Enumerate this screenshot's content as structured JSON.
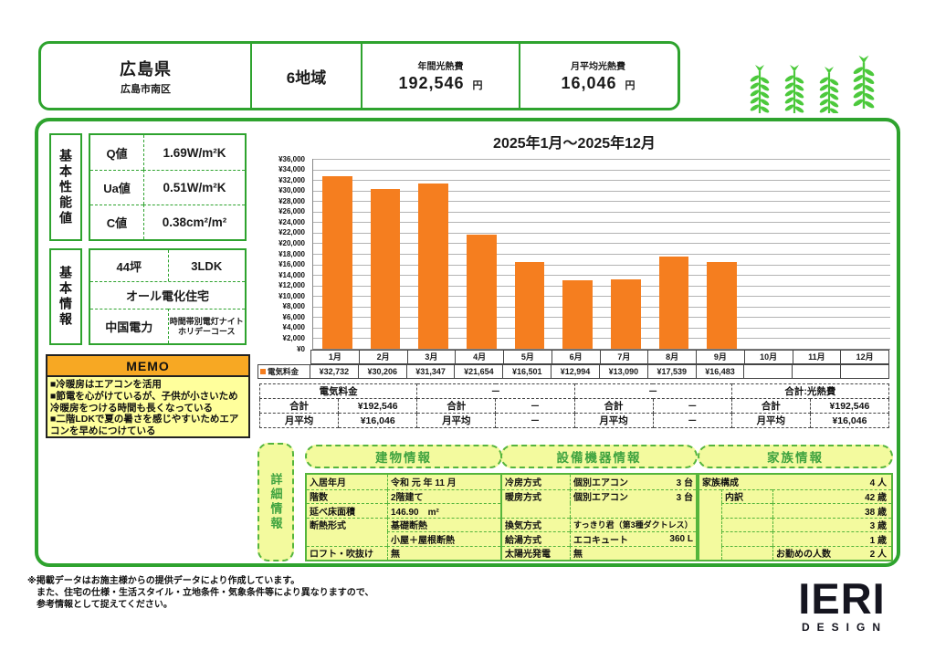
{
  "header": {
    "prefecture": "広島県",
    "city": "広島市南区",
    "region": "6地域",
    "annual_label": "年間光熱費",
    "annual_value": "192,546",
    "monthly_label": "月平均光熱費",
    "monthly_value": "16,046",
    "yen": "円"
  },
  "performance": {
    "section_label": "基本性能値",
    "rows": [
      {
        "label": "Q値",
        "value": "1.69W/m²K"
      },
      {
        "label": "Ua値",
        "value": "0.51W/m²K"
      },
      {
        "label": "C値",
        "value": "0.38cm²/m²"
      }
    ]
  },
  "basic_info": {
    "section_label": "基本情報",
    "area": "44坪",
    "layout": "3LDK",
    "house_type": "オール電化住宅",
    "power_company": "中国電力",
    "plan": "時間帯別電灯ナイトホリデーコース"
  },
  "memo": {
    "title": "MEMO",
    "lines": [
      "■冷暖房はエアコンを活用",
      "■節電を心がけているが、子供が小さいため冷暖房をつける時間も長くなっている",
      "■二階LDKで夏の暑さを感じやすいためエアコンを早めにつけている"
    ]
  },
  "chart_data": {
    "type": "bar",
    "title": "2025年1月～2025年12月",
    "categories": [
      "1月",
      "2月",
      "3月",
      "4月",
      "5月",
      "6月",
      "7月",
      "8月",
      "9月",
      "10月",
      "11月",
      "12月"
    ],
    "series": [
      {
        "name": "電気料金",
        "color": "#F57E1F",
        "values": [
          32732,
          30206,
          31347,
          21654,
          16501,
          12994,
          13090,
          17539,
          16483,
          null,
          null,
          null
        ],
        "row_labels": [
          "¥32,732",
          "¥30,206",
          "¥31,347",
          "¥21,654",
          "¥16,501",
          "¥12,994",
          "¥13,090",
          "¥17,539",
          "¥16,483",
          "",
          "",
          ""
        ]
      }
    ],
    "xlabel": "",
    "ylabel": "",
    "ylim": [
      0,
      36000
    ],
    "ytick_step": 2000,
    "grid": true,
    "legend_position": "data-table-left"
  },
  "summary_table": {
    "groups": [
      {
        "header": "電気料金",
        "total_label": "合計",
        "total": "¥192,546",
        "avg_label": "月平均",
        "avg": "¥16,046"
      },
      {
        "header": "－",
        "total_label": "合計",
        "total": "－",
        "avg_label": "月平均",
        "avg": "－"
      },
      {
        "header": "－",
        "total_label": "合計",
        "total": "－",
        "avg_label": "月平均",
        "avg": "－"
      },
      {
        "header": "合計:光熱費",
        "total_label": "合計",
        "total": "¥192,546",
        "avg_label": "月平均",
        "avg": "¥16,046"
      }
    ]
  },
  "details": {
    "section_label": "詳細情報",
    "building": {
      "title": "建物情報",
      "rows": [
        [
          "入居年月",
          "令和 元 年 11 月"
        ],
        [
          "階数",
          "2階建て"
        ],
        [
          "延べ床面積",
          "146.90　m²"
        ],
        [
          "断熱形式",
          "基礎断熱"
        ],
        [
          "",
          "小屋＋屋根断熱"
        ],
        [
          "ロフト・吹抜け",
          "無"
        ]
      ]
    },
    "equipment": {
      "title": "設備機器情報",
      "rows": [
        [
          "冷房方式",
          "個別エアコン",
          "3 台"
        ],
        [
          "暖房方式",
          "個別エアコン",
          "3 台"
        ],
        [
          "",
          "",
          ""
        ],
        [
          "換気方式",
          "すっきり君（第3種ダクトレス）",
          ""
        ],
        [
          "給湯方式",
          "エコキュート",
          "360 L"
        ],
        [
          "太陽光発電",
          "無",
          ""
        ]
      ]
    },
    "family": {
      "title": "家族情報",
      "composition_label": "家族構成",
      "composition_value": "4 人",
      "breakdown_label": "内訳",
      "ages": [
        "42 歳",
        "38 歳",
        "3 歳",
        "1 歳"
      ],
      "workers_label": "お勤めの人数",
      "workers_value": "2 人"
    }
  },
  "footer": {
    "note_lines": [
      "※掲載データはお施主様からの提供データにより作成しています。",
      "　また、住宅の仕様・生活スタイル・立地条件・気象条件等により異なりますので、",
      "　参考情報として捉えてください。"
    ],
    "logo_top": "IERI",
    "logo_bottom": "DESIGN"
  },
  "colors": {
    "frame_green": "#2EA32E",
    "dashed_green": "#55B53C",
    "section_text_green": "#3FA33F",
    "section_bg": "#F3FA9E",
    "memo_header_orange": "#F7A823",
    "memo_body_yellow": "#FFFF9C",
    "bar_orange": "#F57E1F"
  }
}
